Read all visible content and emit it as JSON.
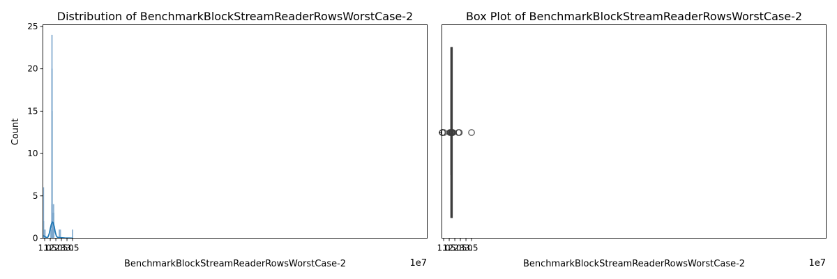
{
  "chart_data": [
    {
      "type": "histogram",
      "title": "Distribution of BenchmarkBlockStreamReaderRowsWorstCase-2",
      "xlabel": "BenchmarkBlockStreamReaderRowsWorstCase-2",
      "ylabel": "Count",
      "x_offset_label": "1e7",
      "xlim": [
        0.84,
        35.3
      ],
      "ylim": [
        0,
        25.2
      ],
      "xticks": [
        1.0,
        1.5,
        2.0,
        2.5,
        3.0,
        3.5
      ],
      "xtick_labels": [
        "1.0",
        "1.5",
        "2.0",
        "2.5",
        "3.0",
        "3.5"
      ],
      "yticks": [
        0,
        5,
        10,
        15,
        20,
        25
      ],
      "ytick_labels": [
        "0",
        "5",
        "10",
        "15",
        "20",
        "25"
      ],
      "grid": false,
      "bars_x_units": "1e6",
      "bars": [
        {
          "x": 8.85,
          "count": 6
        },
        {
          "x": 8.92,
          "count": 2
        },
        {
          "x": 9.08,
          "count": 1
        },
        {
          "x": 10.25,
          "count": 1
        },
        {
          "x": 15.55,
          "count": 1
        },
        {
          "x": 16.1,
          "count": 1
        },
        {
          "x": 16.2,
          "count": 1
        },
        {
          "x": 16.45,
          "count": 4
        },
        {
          "x": 16.55,
          "count": 24
        },
        {
          "x": 16.6,
          "count": 20
        },
        {
          "x": 16.65,
          "count": 15
        },
        {
          "x": 16.7,
          "count": 3
        },
        {
          "x": 16.8,
          "count": 3
        },
        {
          "x": 16.9,
          "count": 1
        },
        {
          "x": 17.0,
          "count": 1
        },
        {
          "x": 17.6,
          "count": 1
        },
        {
          "x": 17.85,
          "count": 2
        },
        {
          "x": 17.95,
          "count": 4
        },
        {
          "x": 18.05,
          "count": 3
        },
        {
          "x": 18.15,
          "count": 1
        },
        {
          "x": 23.2,
          "count": 1
        },
        {
          "x": 24.0,
          "count": 1
        },
        {
          "x": 35.0,
          "count": 1
        }
      ],
      "kde_x_units": "1e6",
      "kde": [
        [
          8.8,
          0.3
        ],
        [
          10,
          0.22
        ],
        [
          11,
          0.12
        ],
        [
          12,
          0.05
        ],
        [
          13,
          0.15
        ],
        [
          14,
          0.5
        ],
        [
          15,
          1.1
        ],
        [
          16,
          1.65
        ],
        [
          16.8,
          1.9
        ],
        [
          17.5,
          1.85
        ],
        [
          18.5,
          1.4
        ],
        [
          19.5,
          0.7
        ],
        [
          20.5,
          0.25
        ],
        [
          21.5,
          0.1
        ],
        [
          23,
          0.06
        ],
        [
          24.5,
          0.06
        ],
        [
          26,
          0.05
        ],
        [
          28,
          0.03
        ],
        [
          30,
          0.02
        ],
        [
          32,
          0.02
        ],
        [
          35,
          0.01
        ]
      ],
      "colors": {
        "bars": "#7ea8cd",
        "kde": "#1f77b4"
      }
    },
    {
      "type": "box",
      "title": "Box Plot of BenchmarkBlockStreamReaderRowsWorstCase-2",
      "xlabel": "BenchmarkBlockStreamReaderRowsWorstCase-2",
      "x_offset_label": "1e7",
      "xlim": [
        0.84,
        35.3
      ],
      "xticks": [
        1.0,
        1.5,
        2.0,
        2.5,
        3.0,
        3.5
      ],
      "xtick_labels": [
        "1.0",
        "1.5",
        "2.0",
        "2.5",
        "3.0",
        "3.5"
      ],
      "grid": false,
      "values_units": "1e6",
      "q1": 16.5,
      "median": 16.55,
      "q3": 16.75,
      "whisker_low": 16.45,
      "whisker_high": 16.95,
      "fliers": [
        8.8,
        8.85,
        8.9,
        8.95,
        9.0,
        10.25,
        15.55,
        16.15,
        16.2,
        17.0,
        17.05,
        17.6,
        17.9,
        17.95,
        18.0,
        18.05,
        18.1,
        18.15,
        23.2,
        24.0,
        35.0
      ],
      "colors": {
        "box": "#3d3d3d",
        "median": "#3d3d3d"
      }
    }
  ]
}
